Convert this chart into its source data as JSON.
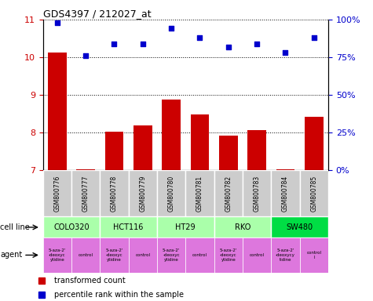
{
  "title": "GDS4397 / 212027_at",
  "samples": [
    "GSM800776",
    "GSM800777",
    "GSM800778",
    "GSM800779",
    "GSM800780",
    "GSM800781",
    "GSM800782",
    "GSM800783",
    "GSM800784",
    "GSM800785"
  ],
  "bar_values": [
    10.12,
    7.02,
    8.01,
    8.19,
    8.87,
    8.48,
    7.91,
    8.07,
    7.02,
    8.42
  ],
  "dot_values": [
    98,
    76,
    84,
    84,
    94,
    88,
    82,
    84,
    78,
    88
  ],
  "ylim": [
    7,
    11
  ],
  "y2lim": [
    0,
    100
  ],
  "yticks": [
    7,
    8,
    9,
    10,
    11
  ],
  "y2ticks": [
    0,
    25,
    50,
    75,
    100
  ],
  "y2ticklabels": [
    "0%",
    "25%",
    "50%",
    "75%",
    "100%"
  ],
  "bar_color": "#cc0000",
  "dot_color": "#0000cc",
  "bar_width": 0.65,
  "cell_lines": [
    {
      "label": "COLO320",
      "start": 0,
      "end": 2,
      "color": "#aaffaa"
    },
    {
      "label": "HCT116",
      "start": 2,
      "end": 4,
      "color": "#aaffaa"
    },
    {
      "label": "HT29",
      "start": 4,
      "end": 6,
      "color": "#aaffaa"
    },
    {
      "label": "RKO",
      "start": 6,
      "end": 8,
      "color": "#aaffaa"
    },
    {
      "label": "SW480",
      "start": 8,
      "end": 10,
      "color": "#00dd44"
    }
  ],
  "agents": [
    {
      "label": "5-aza-2'\n-deoxyc\nytidine",
      "start": 0,
      "end": 1
    },
    {
      "label": "control",
      "start": 1,
      "end": 2
    },
    {
      "label": "5-aza-2'\n-deoxyc\nytidine",
      "start": 2,
      "end": 3
    },
    {
      "label": "control",
      "start": 3,
      "end": 4
    },
    {
      "label": "5-aza-2'\n-deoxyc\nytidine",
      "start": 4,
      "end": 5
    },
    {
      "label": "control",
      "start": 5,
      "end": 6
    },
    {
      "label": "5-aza-2'\n-deoxyc\nytidine",
      "start": 6,
      "end": 7
    },
    {
      "label": "control",
      "start": 7,
      "end": 8
    },
    {
      "label": "5-aza-2'\n-deoxycy\ntidine",
      "start": 8,
      "end": 9
    },
    {
      "label": "control\nl",
      "start": 9,
      "end": 10
    }
  ],
  "agent_color": "#dd77dd",
  "legend_bar_label": "transformed count",
  "legend_dot_label": "percentile rank within the sample",
  "cell_line_label": "cell line",
  "agent_label": "agent",
  "sample_bg_color": "#cccccc",
  "ylabel_color": "#cc0000",
  "y2label_color": "#0000cc"
}
